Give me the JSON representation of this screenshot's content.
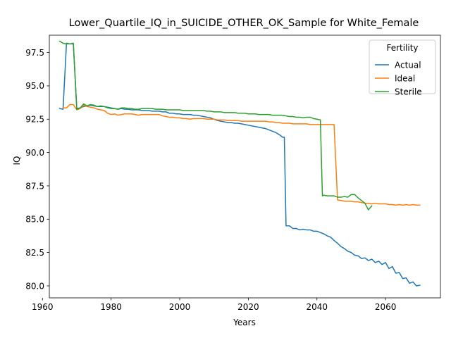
{
  "chart_data": {
    "type": "line",
    "title": "Lower_Quartile_IQ_in_SUICIDE_OTHER_OK_Sample for White_Female",
    "xlabel": "Years",
    "ylabel": "IQ",
    "xlim": [
      1962,
      2076
    ],
    "ylim": [
      79.1,
      98.8
    ],
    "xticks": [
      1960,
      1980,
      2000,
      2020,
      2040,
      2060
    ],
    "xtick_labels": [
      "1960",
      "1980",
      "2000",
      "2020",
      "2040",
      "2060"
    ],
    "yticks": [
      80.0,
      82.5,
      85.0,
      87.5,
      90.0,
      92.5,
      95.0,
      97.5
    ],
    "ytick_labels": [
      "80.0",
      "82.5",
      "85.0",
      "87.5",
      "90.0",
      "92.5",
      "95.0",
      "97.5"
    ],
    "grid": false,
    "legend": {
      "title": "Fertility",
      "placement": "top-right"
    },
    "series": [
      {
        "name": "Actual",
        "color": "#1f77b4",
        "points": [
          [
            1965,
            93.3
          ],
          [
            1966,
            93.25
          ],
          [
            1967,
            98.2
          ],
          [
            1968,
            98.15
          ],
          [
            1969,
            98.15
          ],
          [
            1970,
            93.3
          ],
          [
            1971,
            93.35
          ],
          [
            1972,
            93.45
          ],
          [
            1973,
            93.5
          ],
          [
            1974,
            93.55
          ],
          [
            1975,
            93.5
          ],
          [
            1976,
            93.45
          ],
          [
            1977,
            93.45
          ],
          [
            1978,
            93.45
          ],
          [
            1979,
            93.4
          ],
          [
            1980,
            93.35
          ],
          [
            1981,
            93.3
          ],
          [
            1982,
            93.25
          ],
          [
            1983,
            93.3
          ],
          [
            1984,
            93.25
          ],
          [
            1985,
            93.25
          ],
          [
            1986,
            93.2
          ],
          [
            1987,
            93.2
          ],
          [
            1988,
            93.2
          ],
          [
            1989,
            93.15
          ],
          [
            1990,
            93.15
          ],
          [
            1991,
            93.15
          ],
          [
            1992,
            93.1
          ],
          [
            1993,
            93.1
          ],
          [
            1994,
            93.1
          ],
          [
            1995,
            93.05
          ],
          [
            1996,
            93.05
          ],
          [
            1997,
            92.95
          ],
          [
            1998,
            92.95
          ],
          [
            1999,
            92.9
          ],
          [
            2000,
            92.9
          ],
          [
            2001,
            92.85
          ],
          [
            2002,
            92.85
          ],
          [
            2003,
            92.85
          ],
          [
            2004,
            92.8
          ],
          [
            2005,
            92.8
          ],
          [
            2006,
            92.75
          ],
          [
            2007,
            92.7
          ],
          [
            2008,
            92.65
          ],
          [
            2009,
            92.6
          ],
          [
            2010,
            92.5
          ],
          [
            2011,
            92.4
          ],
          [
            2012,
            92.35
          ],
          [
            2013,
            92.3
          ],
          [
            2014,
            92.25
          ],
          [
            2015,
            92.25
          ],
          [
            2016,
            92.2
          ],
          [
            2017,
            92.2
          ],
          [
            2018,
            92.15
          ],
          [
            2019,
            92.1
          ],
          [
            2020,
            92.05
          ],
          [
            2021,
            92.0
          ],
          [
            2022,
            91.95
          ],
          [
            2023,
            91.9
          ],
          [
            2024,
            91.85
          ],
          [
            2025,
            91.8
          ],
          [
            2026,
            91.7
          ],
          [
            2027,
            91.6
          ],
          [
            2028,
            91.5
          ],
          [
            2029,
            91.35
          ],
          [
            2030,
            91.15
          ],
          [
            2030.5,
            91.15
          ],
          [
            2031,
            84.5
          ],
          [
            2032,
            84.5
          ],
          [
            2033,
            84.3
          ],
          [
            2034,
            84.3
          ],
          [
            2035,
            84.2
          ],
          [
            2036,
            84.25
          ],
          [
            2037,
            84.2
          ],
          [
            2038,
            84.2
          ],
          [
            2039,
            84.1
          ],
          [
            2040,
            84.1
          ],
          [
            2041,
            84.0
          ],
          [
            2042,
            83.9
          ],
          [
            2043,
            83.75
          ],
          [
            2044,
            83.65
          ],
          [
            2045,
            83.4
          ],
          [
            2046,
            83.2
          ],
          [
            2047,
            82.95
          ],
          [
            2048,
            82.8
          ],
          [
            2049,
            82.6
          ],
          [
            2050,
            82.5
          ],
          [
            2051,
            82.3
          ],
          [
            2052,
            82.25
          ],
          [
            2053,
            82.05
          ],
          [
            2054,
            82.1
          ],
          [
            2055,
            81.9
          ],
          [
            2056,
            82.0
          ],
          [
            2057,
            81.75
          ],
          [
            2058,
            81.85
          ],
          [
            2059,
            81.6
          ],
          [
            2060,
            81.75
          ],
          [
            2061,
            81.3
          ],
          [
            2062,
            81.45
          ],
          [
            2063,
            80.95
          ],
          [
            2064,
            81.0
          ],
          [
            2065,
            80.55
          ],
          [
            2066,
            80.6
          ],
          [
            2067,
            80.2
          ],
          [
            2068,
            80.3
          ],
          [
            2069,
            80.0
          ],
          [
            2070,
            80.05
          ]
        ]
      },
      {
        "name": "Ideal",
        "color": "#ff7f0e",
        "points": [
          [
            1966,
            93.35
          ],
          [
            1967,
            93.35
          ],
          [
            1968,
            93.6
          ],
          [
            1969,
            93.6
          ],
          [
            1970,
            93.2
          ],
          [
            1971,
            93.3
          ],
          [
            1972,
            93.55
          ],
          [
            1973,
            93.45
          ],
          [
            1974,
            93.4
          ],
          [
            1975,
            93.35
          ],
          [
            1976,
            93.25
          ],
          [
            1977,
            93.2
          ],
          [
            1978,
            93.15
          ],
          [
            1979,
            92.95
          ],
          [
            1980,
            92.85
          ],
          [
            1981,
            92.9
          ],
          [
            1982,
            92.8
          ],
          [
            1983,
            92.85
          ],
          [
            1984,
            92.9
          ],
          [
            1985,
            92.9
          ],
          [
            1986,
            92.9
          ],
          [
            1987,
            92.85
          ],
          [
            1988,
            92.8
          ],
          [
            1989,
            92.85
          ],
          [
            1990,
            92.85
          ],
          [
            1991,
            92.85
          ],
          [
            1992,
            92.85
          ],
          [
            1993,
            92.85
          ],
          [
            1994,
            92.85
          ],
          [
            1995,
            92.75
          ],
          [
            1996,
            92.7
          ],
          [
            1997,
            92.65
          ],
          [
            1998,
            92.65
          ],
          [
            1999,
            92.6
          ],
          [
            2000,
            92.6
          ],
          [
            2001,
            92.55
          ],
          [
            2002,
            92.55
          ],
          [
            2003,
            92.5
          ],
          [
            2004,
            92.55
          ],
          [
            2005,
            92.55
          ],
          [
            2006,
            92.55
          ],
          [
            2007,
            92.55
          ],
          [
            2008,
            92.5
          ],
          [
            2009,
            92.5
          ],
          [
            2010,
            92.5
          ],
          [
            2011,
            92.45
          ],
          [
            2012,
            92.45
          ],
          [
            2013,
            92.45
          ],
          [
            2014,
            92.4
          ],
          [
            2015,
            92.4
          ],
          [
            2016,
            92.4
          ],
          [
            2017,
            92.4
          ],
          [
            2018,
            92.35
          ],
          [
            2019,
            92.35
          ],
          [
            2020,
            92.35
          ],
          [
            2021,
            92.35
          ],
          [
            2022,
            92.35
          ],
          [
            2023,
            92.35
          ],
          [
            2024,
            92.35
          ],
          [
            2025,
            92.35
          ],
          [
            2026,
            92.3
          ],
          [
            2027,
            92.3
          ],
          [
            2028,
            92.25
          ],
          [
            2029,
            92.25
          ],
          [
            2030,
            92.2
          ],
          [
            2031,
            92.2
          ],
          [
            2032,
            92.2
          ],
          [
            2033,
            92.15
          ],
          [
            2034,
            92.15
          ],
          [
            2035,
            92.15
          ],
          [
            2036,
            92.15
          ],
          [
            2037,
            92.15
          ],
          [
            2038,
            92.1
          ],
          [
            2039,
            92.1
          ],
          [
            2040,
            92.1
          ],
          [
            2041,
            92.1
          ],
          [
            2042,
            92.1
          ],
          [
            2043,
            92.1
          ],
          [
            2044,
            92.1
          ],
          [
            2045,
            92.1
          ],
          [
            2046,
            86.45
          ],
          [
            2047,
            86.4
          ],
          [
            2048,
            86.35
          ],
          [
            2049,
            86.35
          ],
          [
            2050,
            86.35
          ],
          [
            2051,
            86.3
          ],
          [
            2052,
            86.3
          ],
          [
            2053,
            86.25
          ],
          [
            2054,
            86.2
          ],
          [
            2055,
            86.2
          ],
          [
            2056,
            86.15
          ],
          [
            2057,
            86.2
          ],
          [
            2058,
            86.15
          ],
          [
            2059,
            86.15
          ],
          [
            2060,
            86.15
          ],
          [
            2061,
            86.1
          ],
          [
            2062,
            86.1
          ],
          [
            2063,
            86.05
          ],
          [
            2064,
            86.1
          ],
          [
            2065,
            86.05
          ],
          [
            2066,
            86.1
          ],
          [
            2067,
            86.05
          ],
          [
            2068,
            86.1
          ],
          [
            2069,
            86.05
          ],
          [
            2070,
            86.05
          ]
        ]
      },
      {
        "name": "Sterile",
        "color": "#2ca02c",
        "points": [
          [
            1965,
            98.35
          ],
          [
            1966,
            98.2
          ],
          [
            1967,
            98.15
          ],
          [
            1968,
            98.15
          ],
          [
            1969,
            98.2
          ],
          [
            1970,
            93.25
          ],
          [
            1971,
            93.35
          ],
          [
            1972,
            93.65
          ],
          [
            1973,
            93.5
          ],
          [
            1974,
            93.6
          ],
          [
            1975,
            93.55
          ],
          [
            1976,
            93.45
          ],
          [
            1977,
            93.5
          ],
          [
            1978,
            93.45
          ],
          [
            1979,
            93.35
          ],
          [
            1980,
            93.3
          ],
          [
            1981,
            93.3
          ],
          [
            1982,
            93.25
          ],
          [
            1983,
            93.35
          ],
          [
            1984,
            93.35
          ],
          [
            1985,
            93.3
          ],
          [
            1986,
            93.3
          ],
          [
            1987,
            93.25
          ],
          [
            1988,
            93.25
          ],
          [
            1989,
            93.3
          ],
          [
            1990,
            93.3
          ],
          [
            1991,
            93.3
          ],
          [
            1992,
            93.3
          ],
          [
            1993,
            93.25
          ],
          [
            1994,
            93.25
          ],
          [
            1995,
            93.25
          ],
          [
            1996,
            93.2
          ],
          [
            1997,
            93.2
          ],
          [
            1998,
            93.2
          ],
          [
            1999,
            93.2
          ],
          [
            2000,
            93.2
          ],
          [
            2001,
            93.15
          ],
          [
            2002,
            93.15
          ],
          [
            2003,
            93.15
          ],
          [
            2004,
            93.15
          ],
          [
            2005,
            93.15
          ],
          [
            2006,
            93.15
          ],
          [
            2007,
            93.15
          ],
          [
            2008,
            93.1
          ],
          [
            2009,
            93.1
          ],
          [
            2010,
            93.05
          ],
          [
            2011,
            93.05
          ],
          [
            2012,
            93.05
          ],
          [
            2013,
            93.0
          ],
          [
            2014,
            93.0
          ],
          [
            2015,
            93.0
          ],
          [
            2016,
            93.0
          ],
          [
            2017,
            92.95
          ],
          [
            2018,
            92.95
          ],
          [
            2019,
            92.95
          ],
          [
            2020,
            92.9
          ],
          [
            2021,
            92.9
          ],
          [
            2022,
            92.9
          ],
          [
            2023,
            92.85
          ],
          [
            2024,
            92.85
          ],
          [
            2025,
            92.85
          ],
          [
            2026,
            92.85
          ],
          [
            2027,
            92.8
          ],
          [
            2028,
            92.8
          ],
          [
            2029,
            92.8
          ],
          [
            2030,
            92.8
          ],
          [
            2031,
            92.75
          ],
          [
            2032,
            92.7
          ],
          [
            2033,
            92.7
          ],
          [
            2034,
            92.65
          ],
          [
            2035,
            92.65
          ],
          [
            2036,
            92.6
          ],
          [
            2037,
            92.65
          ],
          [
            2038,
            92.65
          ],
          [
            2039,
            92.55
          ],
          [
            2040,
            92.5
          ],
          [
            2041,
            92.45
          ],
          [
            2041.6,
            86.75
          ],
          [
            2042,
            86.8
          ],
          [
            2043,
            86.75
          ],
          [
            2044,
            86.75
          ],
          [
            2045,
            86.75
          ],
          [
            2046,
            86.65
          ],
          [
            2047,
            86.65
          ],
          [
            2048,
            86.7
          ],
          [
            2049,
            86.65
          ],
          [
            2050,
            86.85
          ],
          [
            2051,
            86.85
          ],
          [
            2052,
            86.6
          ],
          [
            2053,
            86.4
          ],
          [
            2054,
            86.2
          ],
          [
            2055,
            85.7
          ],
          [
            2056,
            86.0
          ]
        ]
      }
    ]
  }
}
